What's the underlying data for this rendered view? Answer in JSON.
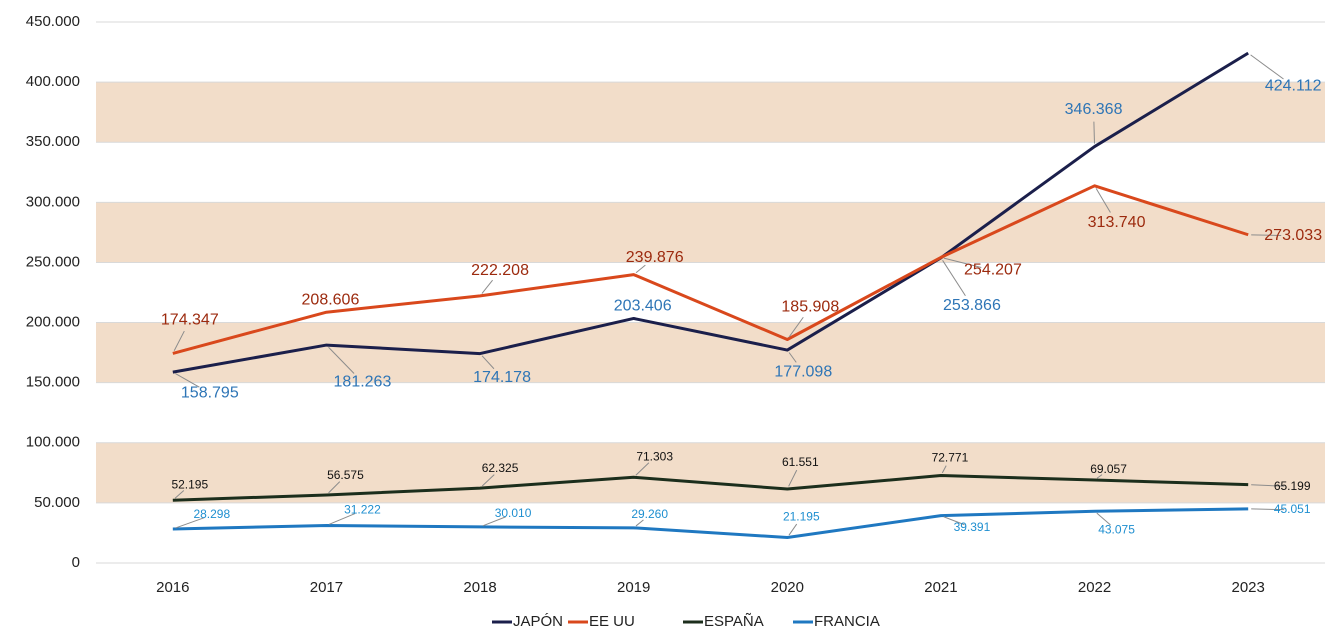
{
  "chart_data": {
    "type": "line",
    "categories": [
      "2016",
      "2017",
      "2018",
      "2019",
      "2020",
      "2021",
      "2022",
      "2023"
    ],
    "series": [
      {
        "name": "JAPÓN",
        "color": "#1b1f4b",
        "label_color": "#2e75b6",
        "values": [
          158795,
          181263,
          174178,
          203406,
          177098,
          253866,
          346368,
          424112
        ],
        "value_labels": [
          "158.795",
          "181.263",
          "174.178",
          "203.406",
          "177.098",
          "253.866",
          "346.368",
          "424.112"
        ]
      },
      {
        "name": "EE UU",
        "color": "#d9481c",
        "label_color": "#9c2a0e",
        "values": [
          174347,
          208606,
          222208,
          239876,
          185908,
          254207,
          313740,
          273033
        ],
        "value_labels": [
          "174.347",
          "208.606",
          "222.208",
          "239.876",
          "185.908",
          "254.207",
          "313.740",
          "273.033"
        ]
      },
      {
        "name": "ESPAÑA",
        "color": "#1c2e1c",
        "label_color": "#111111",
        "values": [
          52195,
          56575,
          62325,
          71303,
          61551,
          72771,
          69057,
          65199
        ],
        "value_labels": [
          "52.195",
          "56.575",
          "62.325",
          "71.303",
          "61.551",
          "72.771",
          "69.057",
          "65.199"
        ]
      },
      {
        "name": "FRANCIA",
        "color": "#1f78c1",
        "label_color": "#1f8fd0",
        "values": [
          28298,
          31222,
          30010,
          29260,
          21195,
          39391,
          43075,
          45051
        ],
        "value_labels": [
          "28.298",
          "31.222",
          "30.010",
          "29.260",
          "21.195",
          "39.391",
          "43.075",
          "45.051"
        ]
      }
    ],
    "ylim": [
      0,
      450000
    ],
    "yticks": [
      0,
      {
        "value": 50000,
        "label": "50.000"
      },
      {
        "value": 100000,
        "label": "100.000"
      },
      {
        "value": 150000,
        "label": "150.000"
      },
      {
        "value": 200000,
        "label": "200.000"
      },
      {
        "value": 250000,
        "label": "250.000"
      },
      {
        "value": 300000,
        "label": "300.000"
      },
      {
        "value": 350000,
        "label": "350.000"
      },
      {
        "value": 400000,
        "label": "400.000"
      },
      {
        "value": 450000,
        "label": "450.000"
      }
    ],
    "band_color": "#f2ddc9",
    "legend": "bottom"
  }
}
